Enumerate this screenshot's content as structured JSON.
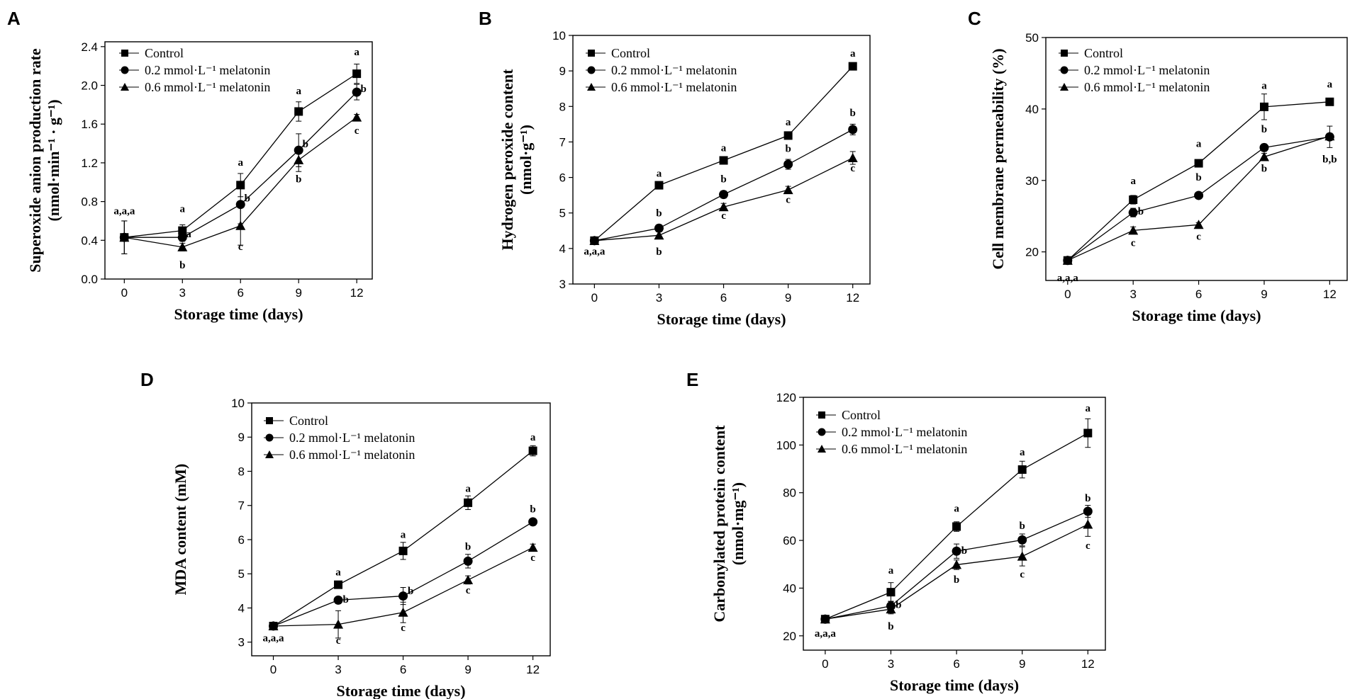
{
  "chart_data": [
    {
      "type": "line",
      "panel": "A",
      "ylabel": "Superoxide anion production rate",
      "ylabel_sub": "(nmol·min⁻¹ · g⁻¹)",
      "xlabel": "Storage time (days)",
      "x": [
        0,
        3,
        6,
        9,
        12
      ],
      "xlim": [
        -1,
        12.8
      ],
      "ylim": [
        0,
        2.45
      ],
      "yticks": [
        0,
        0.4,
        0.8,
        1.2,
        1.6,
        2.0,
        2.4
      ],
      "ytick_labels": [
        "0.0",
        "0.4",
        "0.8",
        "1.2",
        "1.6",
        "2.0",
        "2.4"
      ],
      "legend": [
        "Control",
        "0.2 mmol·L⁻¹ melatonin",
        "0.6 mmol·L⁻¹ melatonin"
      ],
      "series": [
        {
          "name": "Control",
          "marker": "square",
          "values": [
            0.43,
            0.5,
            0.97,
            1.73,
            2.12
          ],
          "errors": [
            0.17,
            0.06,
            0.12,
            0.1,
            0.1
          ]
        },
        {
          "name": "0.2 mmol·L⁻¹ melatonin",
          "marker": "circle",
          "values": [
            0.43,
            0.43,
            0.77,
            1.33,
            1.93
          ],
          "errors": [
            0.17,
            0.04,
            0.2,
            0.17,
            0.08
          ]
        },
        {
          "name": "0.6 mmol·L⁻¹ melatonin",
          "marker": "triangle",
          "values": [
            0.43,
            0.33,
            0.55,
            1.23,
            1.67
          ],
          "errors": [
            0.17,
            0.04,
            0.2,
            0.12,
            0.03
          ]
        }
      ],
      "annotations": [
        {
          "text": "a,a,a",
          "x": 0,
          "y": 0.67
        },
        {
          "text": "a",
          "x": 3,
          "y": 0.69
        },
        {
          "text": "a",
          "x": 3.32,
          "y": 0.43
        },
        {
          "text": "b",
          "x": 3,
          "y": 0.11
        },
        {
          "text": "a",
          "x": 6,
          "y": 1.17
        },
        {
          "text": "b",
          "x": 6.35,
          "y": 0.8
        },
        {
          "text": "c",
          "x": 6,
          "y": 0.3
        },
        {
          "text": "a",
          "x": 9,
          "y": 1.91
        },
        {
          "text": "b",
          "x": 9.35,
          "y": 1.36
        },
        {
          "text": "b",
          "x": 9,
          "y": 1.0
        },
        {
          "text": "a",
          "x": 12,
          "y": 2.31
        },
        {
          "text": "b",
          "x": 12.35,
          "y": 1.93
        },
        {
          "text": "c",
          "x": 12,
          "y": 1.5
        }
      ]
    },
    {
      "type": "line",
      "panel": "B",
      "ylabel": "Hydrogen peroxide content",
      "ylabel_sub": "(nmol·g⁻¹)",
      "xlabel": "Storage time (days)",
      "x": [
        0,
        3,
        6,
        9,
        12
      ],
      "xlim": [
        -1,
        12.8
      ],
      "ylim": [
        3,
        10
      ],
      "yticks": [
        3,
        4,
        5,
        6,
        7,
        8,
        9,
        10
      ],
      "ytick_labels": [
        "3",
        "4",
        "5",
        "6",
        "7",
        "8",
        "9",
        "10"
      ],
      "legend": [
        "Control",
        "0.2 mmol·L⁻¹ melatonin",
        "0.6 mmol·L⁻¹ melatonin"
      ],
      "series": [
        {
          "name": "Control",
          "marker": "square",
          "values": [
            4.22,
            5.78,
            6.48,
            7.18,
            9.13
          ],
          "errors": [
            0.05,
            0.05,
            0.06,
            0.1,
            0.06
          ]
        },
        {
          "name": "0.2 mmol·L⁻¹ melatonin",
          "marker": "circle",
          "values": [
            4.22,
            4.57,
            5.52,
            6.37,
            7.35
          ],
          "errors": [
            0.05,
            0.1,
            0.1,
            0.14,
            0.15
          ]
        },
        {
          "name": "0.6 mmol·L⁻¹ melatonin",
          "marker": "triangle",
          "values": [
            4.22,
            4.37,
            5.17,
            5.65,
            6.55
          ],
          "errors": [
            0.05,
            0.1,
            0.1,
            0.1,
            0.18
          ]
        }
      ],
      "annotations": [
        {
          "text": "a,a,a",
          "x": 0,
          "y": 3.83
        },
        {
          "text": "a",
          "x": 3,
          "y": 6.02
        },
        {
          "text": "b",
          "x": 3,
          "y": 4.9
        },
        {
          "text": "b",
          "x": 3,
          "y": 3.82
        },
        {
          "text": "a",
          "x": 6,
          "y": 6.74
        },
        {
          "text": "b",
          "x": 6,
          "y": 5.86
        },
        {
          "text": "c",
          "x": 6,
          "y": 4.83
        },
        {
          "text": "a",
          "x": 9,
          "y": 7.47
        },
        {
          "text": "b",
          "x": 9,
          "y": 6.72
        },
        {
          "text": "c",
          "x": 9,
          "y": 5.28
        },
        {
          "text": "a",
          "x": 12,
          "y": 9.4
        },
        {
          "text": "b",
          "x": 12,
          "y": 7.73
        },
        {
          "text": "c",
          "x": 12,
          "y": 6.17
        }
      ]
    },
    {
      "type": "line",
      "panel": "C",
      "ylabel": "Cell membrane permeability (%)",
      "ylabel_sub": "",
      "xlabel": "Storage time (days)",
      "x": [
        0,
        3,
        6,
        9,
        12
      ],
      "xlim": [
        -1,
        12.8
      ],
      "ylim": [
        16,
        50
      ],
      "yticks": [
        20,
        30,
        40,
        50
      ],
      "ytick_labels": [
        "20",
        "30",
        "40",
        "50"
      ],
      "legend": [
        "Control",
        "0.2 mmol·L⁻¹ melatonin",
        "0.6 mmol·L⁻¹ melatonin"
      ],
      "series": [
        {
          "name": "Control",
          "marker": "square",
          "values": [
            18.8,
            27.3,
            32.4,
            40.3,
            41.0
          ],
          "errors": [
            0.3,
            0.6,
            0.4,
            1.8,
            0.3
          ]
        },
        {
          "name": "0.2 mmol·L⁻¹ melatonin",
          "marker": "circle",
          "values": [
            18.8,
            25.5,
            27.9,
            34.6,
            36.1
          ],
          "errors": [
            0.3,
            0.6,
            0.4,
            0.5,
            1.5
          ]
        },
        {
          "name": "0.6 mmol·L⁻¹ melatonin",
          "marker": "triangle",
          "values": [
            18.8,
            23.0,
            23.8,
            33.3,
            36.2
          ],
          "errors": [
            0.3,
            0.5,
            0.3,
            0.5,
            0.4
          ]
        }
      ],
      "annotations": [
        {
          "text": "a,a,a",
          "x": 0,
          "y": 15.9
        },
        {
          "text": "a",
          "x": 3,
          "y": 29.5
        },
        {
          "text": "b",
          "x": 3.35,
          "y": 25.2
        },
        {
          "text": "c",
          "x": 3,
          "y": 20.8
        },
        {
          "text": "a",
          "x": 6,
          "y": 34.7
        },
        {
          "text": "b",
          "x": 6,
          "y": 30.0
        },
        {
          "text": "c",
          "x": 6,
          "y": 21.7
        },
        {
          "text": "a",
          "x": 9,
          "y": 42.8
        },
        {
          "text": "b",
          "x": 9,
          "y": 36.7
        },
        {
          "text": "b",
          "x": 9,
          "y": 31.2
        },
        {
          "text": "a",
          "x": 12,
          "y": 43.0
        },
        {
          "text": "b,b",
          "x": 12,
          "y": 32.5
        }
      ]
    },
    {
      "type": "line",
      "panel": "D",
      "ylabel": "MDA content (mM)",
      "ylabel_sub": "",
      "xlabel": "Storage time (days)",
      "x": [
        0,
        3,
        6,
        9,
        12
      ],
      "xlim": [
        -1,
        12.8
      ],
      "ylim": [
        2.6,
        10
      ],
      "yticks": [
        3,
        4,
        5,
        6,
        7,
        8,
        9,
        10
      ],
      "ytick_labels": [
        "3",
        "4",
        "5",
        "6",
        "7",
        "8",
        "9",
        "10"
      ],
      "legend": [
        "Control",
        "0.2 mmol·L⁻¹ melatonin",
        "0.6 mmol·L⁻¹ melatonin"
      ],
      "series": [
        {
          "name": "Control",
          "marker": "square",
          "values": [
            3.47,
            4.68,
            5.67,
            7.08,
            8.6
          ],
          "errors": [
            0.05,
            0.08,
            0.25,
            0.2,
            0.15
          ]
        },
        {
          "name": "0.2 mmol·L⁻¹ melatonin",
          "marker": "circle",
          "values": [
            3.47,
            4.23,
            4.35,
            5.37,
            6.52
          ],
          "errors": [
            0.05,
            0.1,
            0.25,
            0.2,
            0.1
          ]
        },
        {
          "name": "0.6 mmol·L⁻¹ melatonin",
          "marker": "triangle",
          "values": [
            3.47,
            3.52,
            3.87,
            4.82,
            5.77
          ],
          "errors": [
            0.05,
            0.4,
            0.3,
            0.12,
            0.1
          ]
        }
      ],
      "annotations": [
        {
          "text": "a,a,a",
          "x": 0,
          "y": 3.02
        },
        {
          "text": "a",
          "x": 3,
          "y": 4.95
        },
        {
          "text": "b",
          "x": 3.35,
          "y": 4.15
        },
        {
          "text": "c",
          "x": 3,
          "y": 2.95
        },
        {
          "text": "a",
          "x": 6,
          "y": 6.05
        },
        {
          "text": "b",
          "x": 6.35,
          "y": 4.4
        },
        {
          "text": "c",
          "x": 6,
          "y": 3.33
        },
        {
          "text": "a",
          "x": 9,
          "y": 7.4
        },
        {
          "text": "b",
          "x": 9,
          "y": 5.7
        },
        {
          "text": "c",
          "x": 9,
          "y": 4.42
        },
        {
          "text": "a",
          "x": 12,
          "y": 8.9
        },
        {
          "text": "b",
          "x": 12,
          "y": 6.8
        },
        {
          "text": "c",
          "x": 12,
          "y": 5.38
        }
      ]
    },
    {
      "type": "line",
      "panel": "E",
      "ylabel": "Carbonylated protein content",
      "ylabel_sub": "(nmol·mg⁻¹)",
      "xlabel": "Storage time (days)",
      "x": [
        0,
        3,
        6,
        9,
        12
      ],
      "xlim": [
        -1,
        12.8
      ],
      "ylim": [
        14,
        120
      ],
      "yticks": [
        20,
        40,
        60,
        80,
        100,
        120
      ],
      "ytick_labels": [
        "20",
        "40",
        "60",
        "80",
        "100",
        "120"
      ],
      "legend": [
        "Control",
        "0.2 mmol·L⁻¹ melatonin",
        "0.6 mmol·L⁻¹ melatonin"
      ],
      "series": [
        {
          "name": "Control",
          "marker": "square",
          "values": [
            27.0,
            38.3,
            65.8,
            89.7,
            105.0
          ],
          "errors": [
            1.0,
            4.0,
            2.0,
            3.5,
            6.0
          ]
        },
        {
          "name": "0.2 mmol·L⁻¹ melatonin",
          "marker": "circle",
          "values": [
            27.0,
            32.5,
            55.5,
            60.2,
            72.2
          ],
          "errors": [
            1.0,
            2.0,
            3.0,
            2.5,
            2.5
          ]
        },
        {
          "name": "0.6 mmol·L⁻¹ melatonin",
          "marker": "triangle",
          "values": [
            27.0,
            31.2,
            49.8,
            53.3,
            66.7
          ],
          "errors": [
            1.0,
            2.0,
            2.0,
            4.0,
            5.0
          ]
        }
      ],
      "annotations": [
        {
          "text": "a,a,a",
          "x": 0,
          "y": 19.7
        },
        {
          "text": "a",
          "x": 3,
          "y": 46.0
        },
        {
          "text": "b",
          "x": 3.35,
          "y": 31.6
        },
        {
          "text": "b",
          "x": 3,
          "y": 22.6
        },
        {
          "text": "a",
          "x": 6,
          "y": 72.0
        },
        {
          "text": "b",
          "x": 6.35,
          "y": 54.4
        },
        {
          "text": "b",
          "x": 6,
          "y": 42.2
        },
        {
          "text": "a",
          "x": 9,
          "y": 95.7
        },
        {
          "text": "b",
          "x": 9,
          "y": 64.8
        },
        {
          "text": "c",
          "x": 9,
          "y": 44.4
        },
        {
          "text": "a",
          "x": 12,
          "y": 114.0
        },
        {
          "text": "b",
          "x": 12,
          "y": 76.4
        },
        {
          "text": "c",
          "x": 12,
          "y": 56.5
        }
      ]
    }
  ]
}
